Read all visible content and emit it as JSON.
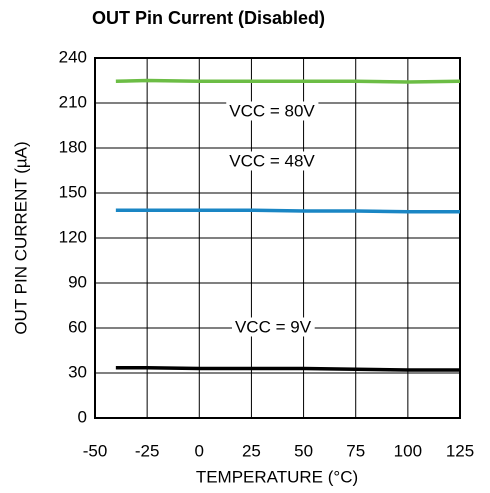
{
  "chart_data": {
    "type": "line",
    "title": "OUT Pin Current (Disabled)",
    "x_label": "TEMPERATURE (°C)",
    "y_label": "OUT PIN CURRENT (µA)",
    "x": [
      -40,
      -25,
      0,
      25,
      50,
      75,
      100,
      125
    ],
    "series": [
      {
        "name": "VCC = 80V",
        "color": "#6cbd45",
        "values": [
          224.5,
          225,
          224.5,
          224.5,
          224.5,
          224.5,
          224,
          224.5
        ]
      },
      {
        "name": "VCC = 48V",
        "color": "#1a86c4",
        "values": [
          138.5,
          138.5,
          138.5,
          138.5,
          138,
          138,
          137.5,
          137.5
        ]
      },
      {
        "name": "VCC = 9V",
        "color": "#000000",
        "values": [
          33.5,
          33.5,
          33,
          33,
          33,
          32.5,
          32,
          32
        ]
      }
    ],
    "xlim": [
      -50,
      125
    ],
    "xticks": [
      -50,
      -25,
      0,
      25,
      50,
      75,
      100,
      125
    ],
    "ylim": [
      0,
      240
    ],
    "yticks": [
      0,
      30,
      60,
      90,
      120,
      150,
      180,
      210,
      240
    ],
    "grid": true
  }
}
